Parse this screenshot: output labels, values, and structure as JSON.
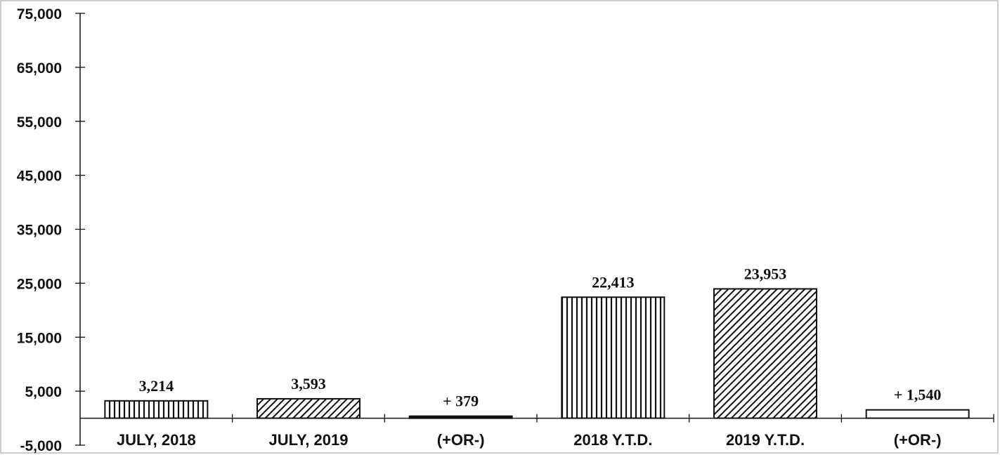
{
  "chart_data": {
    "type": "bar",
    "categories": [
      "JULY, 2018",
      "JULY, 2019",
      "(+OR-)",
      "2018 Y.T.D.",
      "2019 Y.T.D.",
      "(+OR-)"
    ],
    "values": [
      3214,
      3593,
      379,
      22413,
      23953,
      1540
    ],
    "data_labels": [
      "3,214",
      "3,593",
      "+ 379",
      "22,413",
      "23,953",
      "+ 1,540"
    ],
    "patterns": [
      "vertical",
      "diagonal",
      "solid",
      "vertical",
      "diagonal",
      "outline"
    ],
    "yticks": [
      -5000,
      5000,
      15000,
      25000,
      35000,
      45000,
      55000,
      65000,
      75000
    ],
    "ytick_labels": [
      "-5,000",
      "5,000",
      "15,000",
      "25,000",
      "35,000",
      "45,000",
      "55,000",
      "65,000",
      "75,000"
    ],
    "ylim": [
      -5000,
      75000
    ],
    "grid": false,
    "title": "",
    "xlabel": "",
    "ylabel": ""
  }
}
